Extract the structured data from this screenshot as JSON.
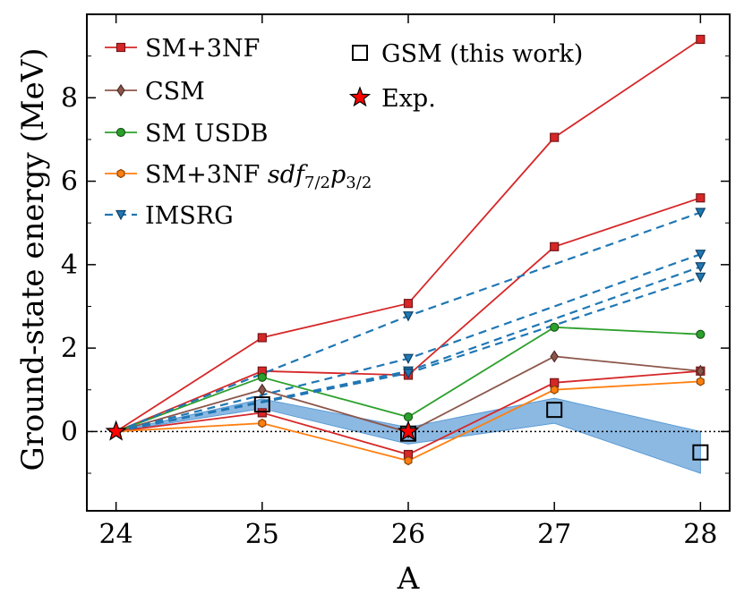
{
  "chart_data": {
    "type": "line",
    "xlabel": "A",
    "ylabel": "Ground-state energy (MeV)",
    "xlim": [
      23.8,
      28.2
    ],
    "ylim": [
      -1.9,
      10.0
    ],
    "x_ticks": [
      24,
      25,
      26,
      27,
      28
    ],
    "y_ticks": [
      0,
      2,
      4,
      6,
      8
    ],
    "x_tick_labels": [
      "24",
      "25",
      "26",
      "27",
      "28"
    ],
    "y_tick_labels": [
      "0",
      "2",
      "4",
      "6",
      "8"
    ],
    "zero_line": true,
    "colors": {
      "sm3nf": "#d62728",
      "csm": "#8c564b",
      "usdb": "#2ca02c",
      "sm3nf_sdfp": "#ff7f0e",
      "imsrg": "#1f77b4",
      "band": "#5b9bd5",
      "exp": "#ff0000"
    },
    "series": [
      {
        "name": "SM+3NF",
        "group": "sm3nf",
        "style": "solid",
        "marker": "square",
        "x": [
          24,
          25,
          26,
          27,
          28
        ],
        "values": [
          0,
          2.25,
          3.07,
          7.05,
          9.4
        ]
      },
      {
        "name": "SM+3NF",
        "group": "sm3nf",
        "style": "solid",
        "marker": "square",
        "x": [
          24,
          25,
          26,
          27,
          28
        ],
        "values": [
          0,
          1.45,
          1.35,
          4.43,
          5.6
        ]
      },
      {
        "name": "SM+3NF",
        "group": "sm3nf",
        "style": "solid",
        "marker": "square",
        "x": [
          24,
          25,
          26,
          27,
          28
        ],
        "values": [
          0,
          0.45,
          -0.55,
          1.17,
          1.45
        ]
      },
      {
        "name": "CSM",
        "group": "csm",
        "style": "solid",
        "marker": "diamond",
        "x": [
          24,
          25,
          26,
          27,
          28
        ],
        "values": [
          0,
          1.0,
          -0.02,
          1.8,
          1.45
        ]
      },
      {
        "name": "SM USDB",
        "group": "usdb",
        "style": "solid",
        "marker": "circle",
        "x": [
          24,
          25,
          26,
          27,
          28
        ],
        "values": [
          0,
          1.3,
          0.35,
          2.5,
          2.33
        ]
      },
      {
        "name": "SM+3NF sdf7/2p3/2",
        "group": "sm3nf_sdfp",
        "style": "solid",
        "marker": "hexagon",
        "x": [
          24,
          25,
          26,
          27,
          28
        ],
        "values": [
          0,
          0.2,
          -0.7,
          1.0,
          1.2
        ]
      },
      {
        "name": "IMSRG",
        "group": "imsrg",
        "style": "dashed",
        "marker": "triangle-down",
        "x": [
          24,
          26,
          28
        ],
        "values": [
          0,
          2.77,
          5.25
        ]
      },
      {
        "name": "IMSRG",
        "group": "imsrg",
        "style": "dashed",
        "marker": "triangle-down",
        "x": [
          24,
          26,
          28
        ],
        "values": [
          0,
          1.75,
          4.25
        ]
      },
      {
        "name": "IMSRG",
        "group": "imsrg",
        "style": "dashed",
        "marker": "triangle-down",
        "x": [
          24,
          26,
          28
        ],
        "values": [
          0,
          1.45,
          3.95
        ]
      },
      {
        "name": "IMSRG",
        "group": "imsrg",
        "style": "dashed",
        "marker": "triangle-down",
        "x": [
          24,
          26,
          28
        ],
        "values": [
          0,
          1.4,
          3.7
        ]
      }
    ],
    "gsm": {
      "name": "GSM (this work)",
      "x": [
        25,
        26,
        27,
        28
      ],
      "values": [
        0.65,
        -0.05,
        0.52,
        -0.5
      ]
    },
    "gsm_band": {
      "x": [
        24,
        25,
        26,
        27,
        28
      ],
      "upper": [
        0,
        0.78,
        0.1,
        0.8,
        0.0
      ],
      "lower": [
        0,
        0.55,
        -0.3,
        0.2,
        -1.0
      ]
    },
    "exp": {
      "name": "Exp.",
      "x": [
        24,
        26
      ],
      "values": [
        0,
        0
      ]
    },
    "legend": {
      "placement": "top-left",
      "left_entries": [
        {
          "label": "SM+3NF",
          "group": "sm3nf",
          "marker": "square",
          "style": "solid"
        },
        {
          "label": "CSM",
          "group": "csm",
          "marker": "diamond",
          "style": "solid"
        },
        {
          "label": "SM USDB",
          "group": "usdb",
          "marker": "circle",
          "style": "solid"
        },
        {
          "label_main": "SM+3NF ",
          "label_sdf": "sdf",
          "label_sub1": "7/2",
          "label_p": "p",
          "label_sub2": "3/2",
          "group": "sm3nf_sdfp",
          "marker": "hexagon",
          "style": "solid"
        },
        {
          "label": "IMSRG",
          "group": "imsrg",
          "marker": "triangle-down",
          "style": "dashed"
        }
      ],
      "right_entries": [
        {
          "label": "GSM (this work)",
          "marker": "open-square"
        },
        {
          "label": "Exp.",
          "marker": "star"
        }
      ]
    }
  }
}
